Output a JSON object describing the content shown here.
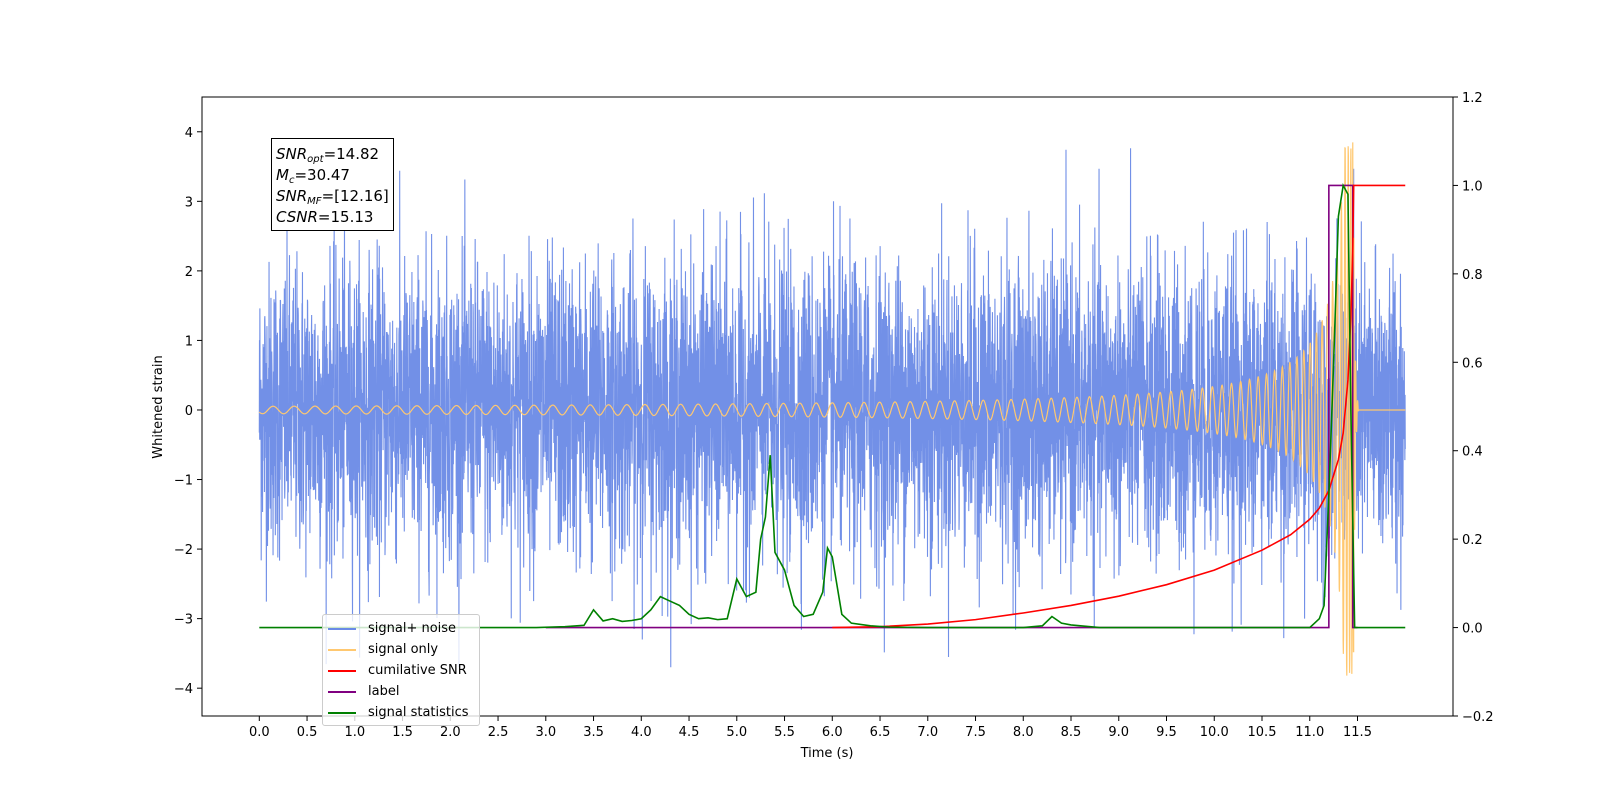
{
  "chart_data": {
    "type": "line",
    "xlabel": "Time (s)",
    "ylabel": "Whitened strain",
    "xlim": [
      -0.6,
      12.5
    ],
    "ylim": [
      -4.4,
      4.5
    ],
    "y2lim": [
      -0.2,
      1.2
    ],
    "xticks": [
      "0.0",
      "0.5",
      "1.0",
      "1.5",
      "2.0",
      "2.5",
      "3.0",
      "3.5",
      "4.0",
      "4.5",
      "5.0",
      "5.5",
      "6.0",
      "6.5",
      "7.0",
      "7.5",
      "8.0",
      "8.5",
      "9.0",
      "9.5",
      "10.0",
      "10.5",
      "11.0",
      "11.5"
    ],
    "yticks": [
      "−4",
      "−3",
      "−2",
      "−1",
      "0",
      "1",
      "2",
      "3",
      "4"
    ],
    "y2ticks": [
      "−0.2",
      "0.0",
      "0.2",
      "0.4",
      "0.6",
      "0.8",
      "1.0",
      "1.2"
    ],
    "annotation": {
      "snr_opt": {
        "sym": "SNR",
        "sub": "opt",
        "val": "=14.82"
      },
      "mc": {
        "sym": "M",
        "sub": "c",
        "val": "=30.47"
      },
      "snr_mf": {
        "sym": "SNR",
        "sub": "MF",
        "val": "=[12.16]"
      },
      "csnr": {
        "sym": "CSNR",
        "val": "=15.13"
      }
    },
    "legend_placement": "lower-left",
    "series": [
      {
        "name": "signal+ noise",
        "color": "#6a8ae6",
        "axis": "left",
        "kind": "noise",
        "x_range": [
          0,
          12.0
        ],
        "amplitude_range": [
          -3.7,
          4.1
        ]
      },
      {
        "name": "signal only",
        "color": "#ffc870",
        "axis": "left",
        "kind": "chirp",
        "x_range": [
          0,
          12.0
        ],
        "peak": 3.85,
        "merger_x": 11.46
      },
      {
        "name": "cumilative SNR",
        "color": "#ff0000",
        "axis": "right",
        "x": [
          6.0,
          6.5,
          7.0,
          7.5,
          8.0,
          8.5,
          9.0,
          9.5,
          10.0,
          10.5,
          10.8,
          11.0,
          11.1,
          11.2,
          11.3,
          11.35,
          11.4,
          11.43,
          11.45,
          11.46,
          11.5,
          12.0
        ],
        "y": [
          0.0,
          0.002,
          0.008,
          0.018,
          0.033,
          0.05,
          0.071,
          0.097,
          0.13,
          0.175,
          0.21,
          0.245,
          0.27,
          0.31,
          0.38,
          0.44,
          0.56,
          0.7,
          0.85,
          1.0,
          1.0,
          1.0
        ]
      },
      {
        "name": "label",
        "color": "#800080",
        "axis": "right",
        "x": [
          3.0,
          11.2,
          11.2,
          11.45,
          11.45,
          11.5
        ],
        "y": [
          0.0,
          0.0,
          1.0,
          1.0,
          0.0,
          0.0
        ]
      },
      {
        "name": "signal statistics",
        "color": "#008000",
        "axis": "right",
        "x": [
          0.0,
          2.9,
          3.2,
          3.4,
          3.5,
          3.6,
          3.7,
          3.8,
          3.9,
          4.0,
          4.1,
          4.2,
          4.3,
          4.4,
          4.5,
          4.6,
          4.7,
          4.8,
          4.9,
          5.0,
          5.1,
          5.2,
          5.25,
          5.3,
          5.35,
          5.4,
          5.5,
          5.6,
          5.7,
          5.8,
          5.9,
          5.95,
          6.0,
          6.1,
          6.2,
          6.4,
          6.6,
          7.0,
          8.0,
          8.2,
          8.3,
          8.4,
          8.5,
          8.8,
          11.0,
          11.05,
          11.1,
          11.15,
          11.2,
          11.25,
          11.3,
          11.35,
          11.4,
          11.43,
          11.47,
          11.5,
          12.0
        ],
        "y": [
          0.0,
          0.0,
          0.002,
          0.005,
          0.04,
          0.015,
          0.02,
          0.014,
          0.016,
          0.02,
          0.04,
          0.07,
          0.06,
          0.05,
          0.03,
          0.02,
          0.022,
          0.018,
          0.02,
          0.11,
          0.07,
          0.08,
          0.2,
          0.25,
          0.39,
          0.17,
          0.13,
          0.05,
          0.025,
          0.03,
          0.08,
          0.18,
          0.16,
          0.03,
          0.01,
          0.004,
          0.001,
          0.0,
          0.0,
          0.004,
          0.025,
          0.01,
          0.006,
          0.0,
          0.0,
          0.01,
          0.02,
          0.05,
          0.3,
          0.6,
          0.93,
          1.0,
          0.98,
          0.5,
          0.0,
          0.0,
          0.0
        ]
      }
    ]
  }
}
